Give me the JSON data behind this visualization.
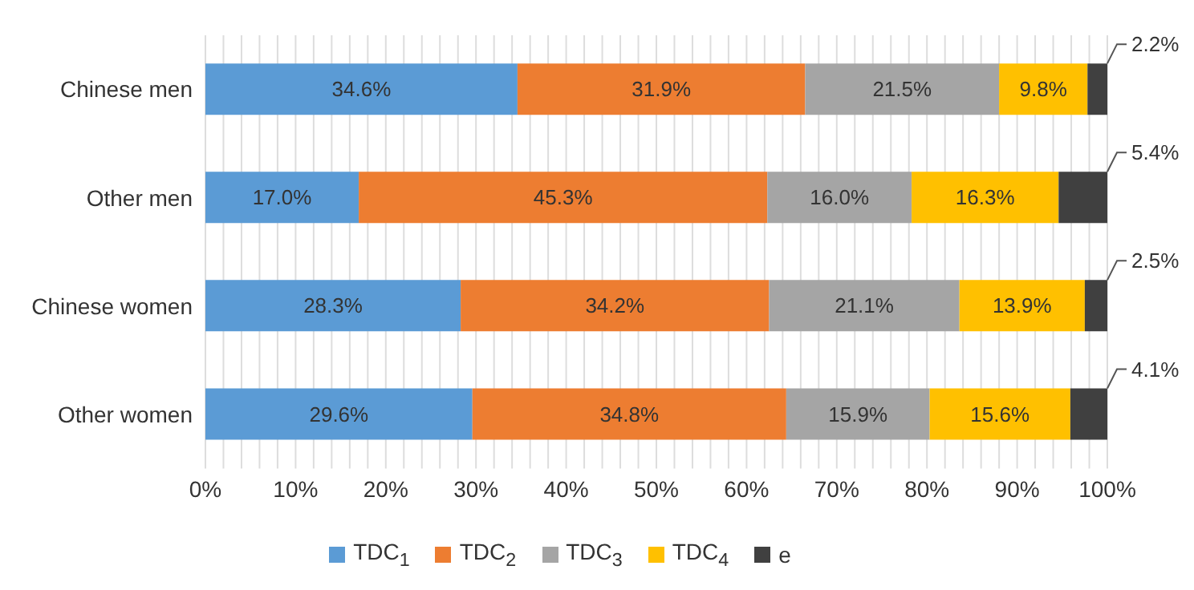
{
  "chart_data": {
    "type": "bar",
    "orientation": "horizontal",
    "stacked": true,
    "categories": [
      "Chinese men",
      "Other men",
      "Chinese women",
      "Other women"
    ],
    "series": [
      {
        "name": "TDC$_{1}$",
        "color": "#5b9bd5",
        "values": [
          34.6,
          17.0,
          28.3,
          29.6
        ],
        "value_labels": [
          "34.6%",
          "17.0%",
          "28.3%",
          "29.6%"
        ]
      },
      {
        "name": "TDC$_{2}$",
        "color": "#ed7d31",
        "values": [
          31.9,
          45.3,
          34.2,
          34.8
        ],
        "value_labels": [
          "31.9%",
          "45.3%",
          "34.2%",
          "34.8%"
        ]
      },
      {
        "name": "TDC$_{3}$",
        "color": "#a5a5a5",
        "values": [
          21.5,
          16.0,
          21.1,
          15.9
        ],
        "value_labels": [
          "21.5%",
          "16.0%",
          "21.1%",
          "15.9%"
        ]
      },
      {
        "name": "TDC$_{4}$",
        "color": "#ffc000",
        "values": [
          9.8,
          16.3,
          13.9,
          15.6
        ],
        "value_labels": [
          "9.8%",
          "16.3%",
          "13.9%",
          "15.6%"
        ]
      },
      {
        "name": "e",
        "color": "#404040",
        "values": [
          2.2,
          5.4,
          2.5,
          4.1
        ],
        "value_labels": [
          "2.2%",
          "5.4%",
          "2.5%",
          "4.1%"
        ]
      }
    ],
    "xlim": [
      0,
      100
    ],
    "xticks": [
      {
        "value": 0,
        "label": "0%"
      },
      {
        "value": 2,
        "label": null
      },
      {
        "value": 4,
        "label": null
      },
      {
        "value": 6,
        "label": null
      },
      {
        "value": 8,
        "label": null
      },
      {
        "value": 10,
        "label": "10%"
      },
      {
        "value": 12,
        "label": null
      },
      {
        "value": 14,
        "label": null
      },
      {
        "value": 16,
        "label": null
      },
      {
        "value": 18,
        "label": null
      },
      {
        "value": 20,
        "label": "20%"
      },
      {
        "value": 22,
        "label": null
      },
      {
        "value": 24,
        "label": null
      },
      {
        "value": 26,
        "label": null
      },
      {
        "value": 28,
        "label": null
      },
      {
        "value": 30,
        "label": "30%"
      },
      {
        "value": 32,
        "label": null
      },
      {
        "value": 34,
        "label": null
      },
      {
        "value": 36,
        "label": null
      },
      {
        "value": 38,
        "label": null
      },
      {
        "value": 40,
        "label": "40%"
      },
      {
        "value": 42,
        "label": null
      },
      {
        "value": 44,
        "label": null
      },
      {
        "value": 46,
        "label": null
      },
      {
        "value": 48,
        "label": null
      },
      {
        "value": 50,
        "label": "50%"
      },
      {
        "value": 52,
        "label": null
      },
      {
        "value": 54,
        "label": null
      },
      {
        "value": 56,
        "label": null
      },
      {
        "value": 58,
        "label": null
      },
      {
        "value": 60,
        "label": "60%"
      },
      {
        "value": 62,
        "label": null
      },
      {
        "value": 64,
        "label": null
      },
      {
        "value": 66,
        "label": null
      },
      {
        "value": 68,
        "label": null
      },
      {
        "value": 70,
        "label": "70%"
      },
      {
        "value": 72,
        "label": null
      },
      {
        "value": 74,
        "label": null
      },
      {
        "value": 76,
        "label": null
      },
      {
        "value": 78,
        "label": null
      },
      {
        "value": 80,
        "label": "80%"
      },
      {
        "value": 82,
        "label": null
      },
      {
        "value": 84,
        "label": null
      },
      {
        "value": 86,
        "label": null
      },
      {
        "value": 88,
        "label": null
      },
      {
        "value": 90,
        "label": "90%"
      },
      {
        "value": 92,
        "label": null
      },
      {
        "value": 94,
        "label": null
      },
      {
        "value": 96,
        "label": null
      },
      {
        "value": 98,
        "label": null
      },
      {
        "value": 100,
        "label": "100%"
      }
    ],
    "grid": "x",
    "legend": "bottom"
  }
}
